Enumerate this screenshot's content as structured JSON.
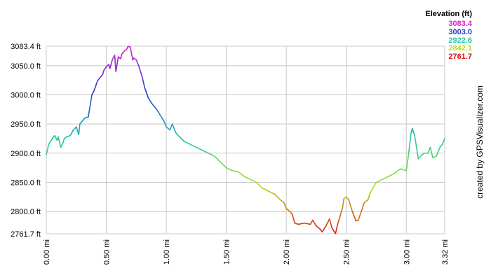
{
  "chart_data": {
    "type": "line",
    "legend_title": "Elevation (ft)",
    "legend_placement": "top-right",
    "legend_entries": [
      {
        "label": "3083.4",
        "color": "#e020d0"
      },
      {
        "label": "3003.0",
        "color": "#2040c8"
      },
      {
        "label": "2922.6",
        "color": "#20c8a0"
      },
      {
        "label": "2842.1",
        "color": "#b0e020"
      },
      {
        "label": "2761.7",
        "color": "#e01010"
      }
    ],
    "credit": "created by GPSVisualizer.com",
    "xlim": [
      0,
      3.32
    ],
    "ylim": [
      2761.7,
      3083.4
    ],
    "y_ticks": [
      {
        "value": 2761.7,
        "label": "2761.7 ft"
      },
      {
        "value": 2800,
        "label": "2800.0 ft"
      },
      {
        "value": 2850,
        "label": "2850.0 ft"
      },
      {
        "value": 2900,
        "label": "2900.0 ft"
      },
      {
        "value": 2950,
        "label": "2950.0 ft"
      },
      {
        "value": 3000,
        "label": "3000.0 ft"
      },
      {
        "value": 3050,
        "label": "3050.0 ft"
      },
      {
        "value": 3083.4,
        "label": "3083.4 ft"
      }
    ],
    "x_ticks": [
      {
        "value": 0,
        "label": "0.00 mi"
      },
      {
        "value": 0.5,
        "label": "0.50 mi"
      },
      {
        "value": 1.0,
        "label": "1.00 mi"
      },
      {
        "value": 1.5,
        "label": "1.50 mi"
      },
      {
        "value": 2.0,
        "label": "2.00 mi"
      },
      {
        "value": 2.5,
        "label": "2.50 mi"
      },
      {
        "value": 3.0,
        "label": "3.00 mi"
      },
      {
        "value": 3.32,
        "label": "3.32 mi"
      }
    ],
    "grid": true,
    "series": [
      {
        "x": [
          0,
          0.02,
          0.05,
          0.07,
          0.09,
          0.1,
          0.12,
          0.14,
          0.15,
          0.17,
          0.2,
          0.22,
          0.25,
          0.27,
          0.28,
          0.3,
          0.32,
          0.35,
          0.38,
          0.4,
          0.42,
          0.43,
          0.45,
          0.47,
          0.48,
          0.5,
          0.52,
          0.53,
          0.55,
          0.57,
          0.58,
          0.6,
          0.62,
          0.63,
          0.65,
          0.67,
          0.68,
          0.7,
          0.72,
          0.73,
          0.75,
          0.77,
          0.8,
          0.82,
          0.85,
          0.88,
          0.92,
          0.95,
          0.98,
          1.0,
          1.03,
          1.05,
          1.08,
          1.1,
          1.15,
          1.2,
          1.25,
          1.3,
          1.35,
          1.4,
          1.45,
          1.5,
          1.55,
          1.6,
          1.65,
          1.7,
          1.75,
          1.8,
          1.85,
          1.9,
          1.95,
          1.98,
          2.0,
          2.03,
          2.05,
          2.07,
          2.1,
          2.15,
          2.2,
          2.22,
          2.25,
          2.28,
          2.3,
          2.33,
          2.36,
          2.38,
          2.41,
          2.43,
          2.45,
          2.47,
          2.48,
          2.5,
          2.52,
          2.55,
          2.58,
          2.6,
          2.65,
          2.68,
          2.7,
          2.75,
          2.8,
          2.85,
          2.9,
          2.95,
          3.0,
          3.02,
          3.04,
          3.05,
          3.07,
          3.1,
          3.12,
          3.15,
          3.18,
          3.2,
          3.22,
          3.25,
          3.28,
          3.3,
          3.32
        ],
        "y": [
          2897,
          2915,
          2925,
          2930,
          2922,
          2928,
          2910,
          2918,
          2925,
          2928,
          2930,
          2938,
          2945,
          2932,
          2950,
          2955,
          2960,
          2962,
          3000,
          3008,
          3020,
          3025,
          3030,
          3035,
          3042,
          3048,
          3052,
          3045,
          3060,
          3068,
          3040,
          3065,
          3062,
          3070,
          3075,
          3078,
          3083,
          3082,
          3060,
          3063,
          3060,
          3050,
          3030,
          3012,
          2995,
          2985,
          2975,
          2965,
          2955,
          2945,
          2940,
          2950,
          2935,
          2930,
          2920,
          2915,
          2910,
          2905,
          2900,
          2895,
          2885,
          2875,
          2870,
          2868,
          2860,
          2855,
          2850,
          2840,
          2835,
          2830,
          2820,
          2815,
          2805,
          2800,
          2795,
          2780,
          2778,
          2780,
          2778,
          2785,
          2775,
          2770,
          2765,
          2775,
          2787,
          2772,
          2762,
          2780,
          2793,
          2808,
          2822,
          2825,
          2820,
          2800,
          2784,
          2785,
          2815,
          2820,
          2832,
          2850,
          2855,
          2860,
          2865,
          2873,
          2870,
          2900,
          2935,
          2942,
          2930,
          2890,
          2895,
          2900,
          2900,
          2910,
          2892,
          2895,
          2910,
          2915,
          2925
        ]
      }
    ]
  }
}
